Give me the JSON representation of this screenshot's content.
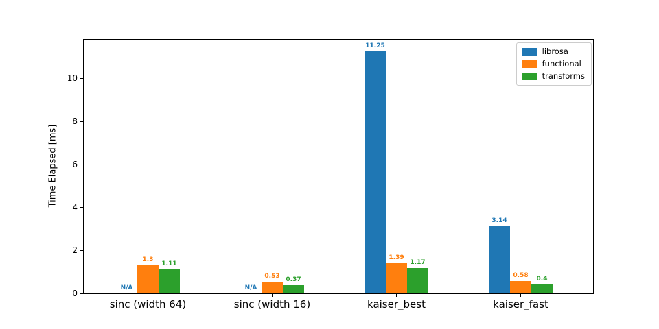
{
  "figure": {
    "background": "#ffffff"
  },
  "chart_data": {
    "type": "bar",
    "title": "",
    "xlabel": "",
    "ylabel": "Time Elapsed [ms]",
    "categories": [
      "sinc (width 64)",
      "sinc (width 16)",
      "kaiser_best",
      "kaiser_fast"
    ],
    "series": [
      {
        "name": "librosa",
        "color": "#1f77b4",
        "values": [
          null,
          null,
          11.25,
          3.14
        ],
        "value_labels": [
          "N/A",
          "N/A",
          "11.25",
          "3.14"
        ]
      },
      {
        "name": "functional",
        "color": "#ff7f0e",
        "values": [
          1.3,
          0.53,
          1.39,
          0.58
        ],
        "value_labels": [
          "1.3",
          "0.53",
          "1.39",
          "0.58"
        ]
      },
      {
        "name": "transforms",
        "color": "#2ca02c",
        "values": [
          1.11,
          0.37,
          1.17,
          0.4
        ],
        "value_labels": [
          "1.11",
          "0.37",
          "1.17",
          "0.4"
        ]
      }
    ],
    "missing_value_text": "N/A",
    "yticks": [
      0,
      2,
      4,
      6,
      8,
      10
    ],
    "ylim": [
      0,
      11.8
    ],
    "grid": false,
    "legend": {
      "position": "upper-right",
      "entries": [
        "librosa",
        "functional",
        "transforms"
      ]
    }
  }
}
